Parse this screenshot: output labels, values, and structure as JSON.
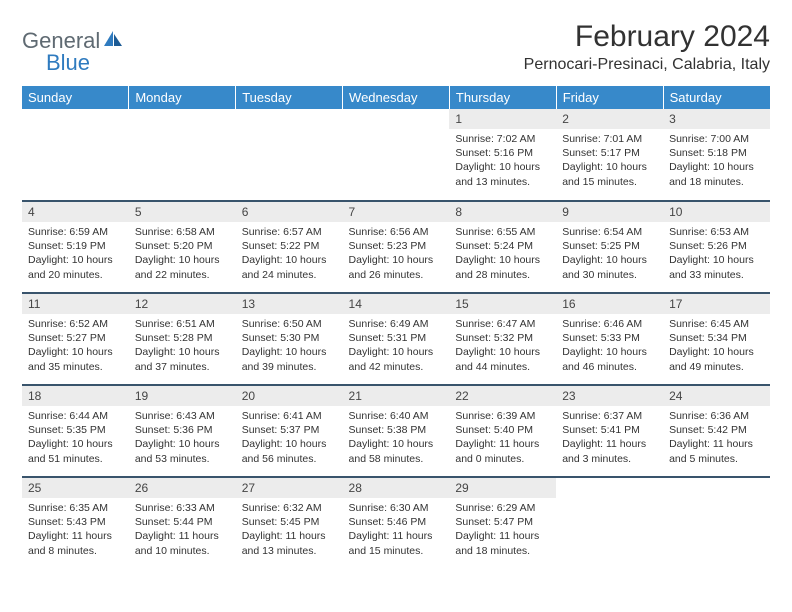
{
  "logo": {
    "general": "General",
    "blue": "Blue"
  },
  "title": "February 2024",
  "location": "Pernocari-Presinaci, Calabria, Italy",
  "colors": {
    "header_bg": "#3789ca",
    "header_text": "#ffffff",
    "daynum_bg": "#ececec",
    "row_border": "#39546c",
    "logo_gray": "#5f6a72",
    "logo_blue": "#2f7bbf"
  },
  "daysOfWeek": [
    "Sunday",
    "Monday",
    "Tuesday",
    "Wednesday",
    "Thursday",
    "Friday",
    "Saturday"
  ],
  "firstDayOffset": 4,
  "days": [
    {
      "n": 1,
      "sunrise": "7:02 AM",
      "sunset": "5:16 PM",
      "daylight": "10 hours and 13 minutes."
    },
    {
      "n": 2,
      "sunrise": "7:01 AM",
      "sunset": "5:17 PM",
      "daylight": "10 hours and 15 minutes."
    },
    {
      "n": 3,
      "sunrise": "7:00 AM",
      "sunset": "5:18 PM",
      "daylight": "10 hours and 18 minutes."
    },
    {
      "n": 4,
      "sunrise": "6:59 AM",
      "sunset": "5:19 PM",
      "daylight": "10 hours and 20 minutes."
    },
    {
      "n": 5,
      "sunrise": "6:58 AM",
      "sunset": "5:20 PM",
      "daylight": "10 hours and 22 minutes."
    },
    {
      "n": 6,
      "sunrise": "6:57 AM",
      "sunset": "5:22 PM",
      "daylight": "10 hours and 24 minutes."
    },
    {
      "n": 7,
      "sunrise": "6:56 AM",
      "sunset": "5:23 PM",
      "daylight": "10 hours and 26 minutes."
    },
    {
      "n": 8,
      "sunrise": "6:55 AM",
      "sunset": "5:24 PM",
      "daylight": "10 hours and 28 minutes."
    },
    {
      "n": 9,
      "sunrise": "6:54 AM",
      "sunset": "5:25 PM",
      "daylight": "10 hours and 30 minutes."
    },
    {
      "n": 10,
      "sunrise": "6:53 AM",
      "sunset": "5:26 PM",
      "daylight": "10 hours and 33 minutes."
    },
    {
      "n": 11,
      "sunrise": "6:52 AM",
      "sunset": "5:27 PM",
      "daylight": "10 hours and 35 minutes."
    },
    {
      "n": 12,
      "sunrise": "6:51 AM",
      "sunset": "5:28 PM",
      "daylight": "10 hours and 37 minutes."
    },
    {
      "n": 13,
      "sunrise": "6:50 AM",
      "sunset": "5:30 PM",
      "daylight": "10 hours and 39 minutes."
    },
    {
      "n": 14,
      "sunrise": "6:49 AM",
      "sunset": "5:31 PM",
      "daylight": "10 hours and 42 minutes."
    },
    {
      "n": 15,
      "sunrise": "6:47 AM",
      "sunset": "5:32 PM",
      "daylight": "10 hours and 44 minutes."
    },
    {
      "n": 16,
      "sunrise": "6:46 AM",
      "sunset": "5:33 PM",
      "daylight": "10 hours and 46 minutes."
    },
    {
      "n": 17,
      "sunrise": "6:45 AM",
      "sunset": "5:34 PM",
      "daylight": "10 hours and 49 minutes."
    },
    {
      "n": 18,
      "sunrise": "6:44 AM",
      "sunset": "5:35 PM",
      "daylight": "10 hours and 51 minutes."
    },
    {
      "n": 19,
      "sunrise": "6:43 AM",
      "sunset": "5:36 PM",
      "daylight": "10 hours and 53 minutes."
    },
    {
      "n": 20,
      "sunrise": "6:41 AM",
      "sunset": "5:37 PM",
      "daylight": "10 hours and 56 minutes."
    },
    {
      "n": 21,
      "sunrise": "6:40 AM",
      "sunset": "5:38 PM",
      "daylight": "10 hours and 58 minutes."
    },
    {
      "n": 22,
      "sunrise": "6:39 AM",
      "sunset": "5:40 PM",
      "daylight": "11 hours and 0 minutes."
    },
    {
      "n": 23,
      "sunrise": "6:37 AM",
      "sunset": "5:41 PM",
      "daylight": "11 hours and 3 minutes."
    },
    {
      "n": 24,
      "sunrise": "6:36 AM",
      "sunset": "5:42 PM",
      "daylight": "11 hours and 5 minutes."
    },
    {
      "n": 25,
      "sunrise": "6:35 AM",
      "sunset": "5:43 PM",
      "daylight": "11 hours and 8 minutes."
    },
    {
      "n": 26,
      "sunrise": "6:33 AM",
      "sunset": "5:44 PM",
      "daylight": "11 hours and 10 minutes."
    },
    {
      "n": 27,
      "sunrise": "6:32 AM",
      "sunset": "5:45 PM",
      "daylight": "11 hours and 13 minutes."
    },
    {
      "n": 28,
      "sunrise": "6:30 AM",
      "sunset": "5:46 PM",
      "daylight": "11 hours and 15 minutes."
    },
    {
      "n": 29,
      "sunrise": "6:29 AM",
      "sunset": "5:47 PM",
      "daylight": "11 hours and 18 minutes."
    }
  ],
  "labels": {
    "sunrise": "Sunrise:",
    "sunset": "Sunset:",
    "daylight": "Daylight:"
  }
}
